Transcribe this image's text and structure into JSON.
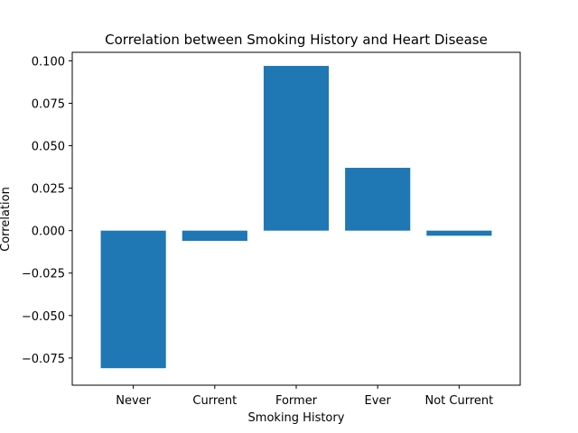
{
  "chart_data": {
    "type": "bar",
    "title": "Correlation between Smoking History and Heart Disease",
    "xlabel": "Smoking History",
    "ylabel": "Correlation",
    "categories": [
      "Never",
      "Current",
      "Former",
      "Ever",
      "Not Current"
    ],
    "values": [
      -0.081,
      -0.006,
      0.097,
      0.037,
      -0.003
    ],
    "ylim": [
      -0.091,
      0.105
    ],
    "yticks": [
      -0.075,
      -0.05,
      -0.025,
      0.0,
      0.025,
      0.05,
      0.075,
      0.1
    ],
    "ytick_labels": [
      "−0.075",
      "−0.050",
      "−0.025",
      "0.000",
      "0.025",
      "0.050",
      "0.075",
      "0.100"
    ],
    "bar_color": "#1f77b4",
    "grid": false,
    "legend": "none"
  }
}
